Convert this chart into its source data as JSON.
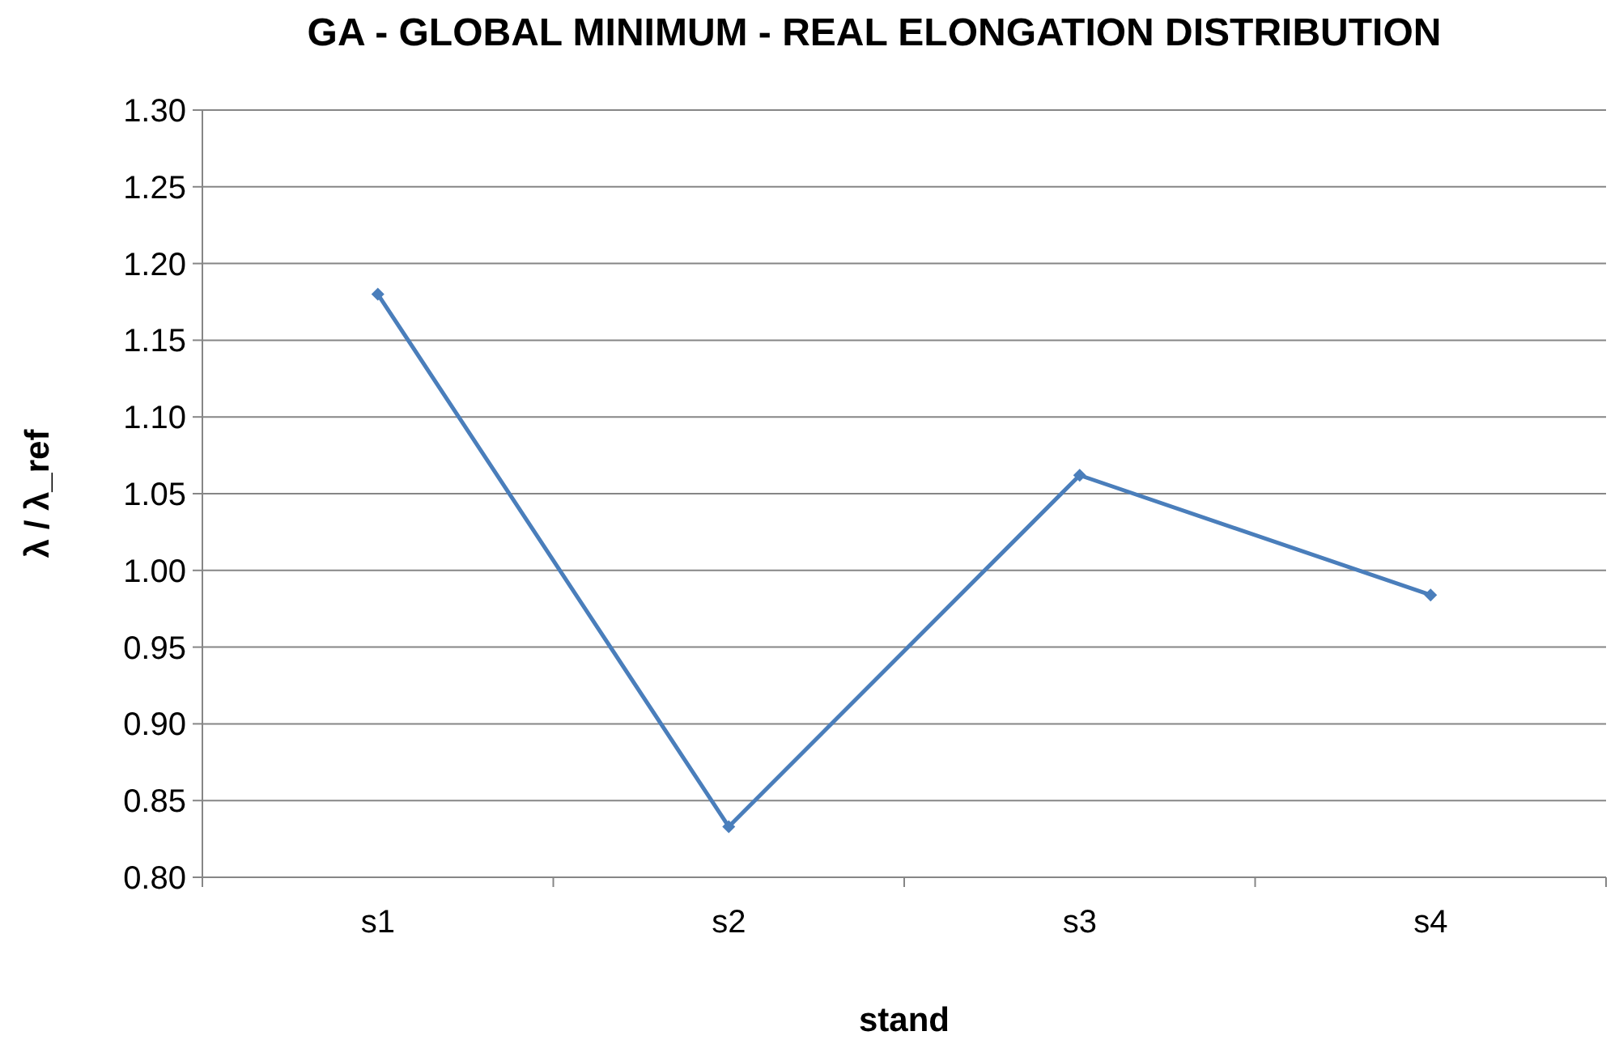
{
  "chart_data": {
    "type": "line",
    "title": "GA - GLOBAL MINIMUM - REAL ELONGATION DISTRIBUTION",
    "xlabel": "stand",
    "ylabel": "λ / λ_ref",
    "categories": [
      "s1",
      "s2",
      "s3",
      "s4"
    ],
    "series": [
      {
        "color": "#4a7ebb",
        "values": [
          1.18,
          0.833,
          1.062,
          0.984
        ]
      }
    ],
    "ylim": [
      0.8,
      1.3
    ],
    "yticks": [
      {
        "value": 0.8,
        "label": "0.80"
      },
      {
        "value": 0.85,
        "label": "0.85"
      },
      {
        "value": 0.9,
        "label": "0.90"
      },
      {
        "value": 0.95,
        "label": "0.95"
      },
      {
        "value": 1.0,
        "label": "1.00"
      },
      {
        "value": 1.05,
        "label": "1.05"
      },
      {
        "value": 1.1,
        "label": "1.10"
      },
      {
        "value": 1.15,
        "label": "1.15"
      },
      {
        "value": 1.2,
        "label": "1.20"
      },
      {
        "value": 1.25,
        "label": "1.25"
      },
      {
        "value": 1.3,
        "label": "1.30"
      }
    ],
    "grid": "y",
    "marker": "diamond",
    "line_style": "solid"
  }
}
